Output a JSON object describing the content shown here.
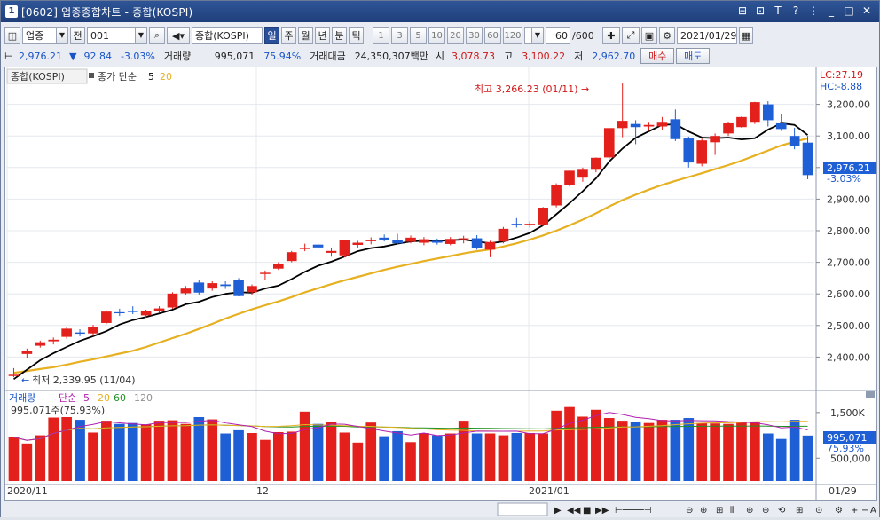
{
  "window": {
    "icon": "1",
    "title": "[0602] 업종종합차트 - 종합(KOSPI)",
    "controls": [
      "restore-icon",
      "link-icon",
      "text-icon",
      "help-icon",
      "more-icon",
      "minimize-icon",
      "maximize-icon",
      "close-icon"
    ]
  },
  "toolbar": {
    "market_select": "업종",
    "prev_label": "전",
    "code_value": "001",
    "index_name": "종합(KOSPI)",
    "periods": [
      "일",
      "주",
      "월",
      "년",
      "분",
      "틱"
    ],
    "active_period": "일",
    "numbers": [
      "1",
      "3",
      "5",
      "10",
      "20",
      "30",
      "60",
      "120"
    ],
    "count_value": "60",
    "count_total": "/600",
    "date_value": "2021/01/29"
  },
  "infobar": {
    "price": "2,976.21",
    "change_arrow": "▼",
    "change": "92.84",
    "change_pct": "-3.03%",
    "volume_label": "거래량",
    "volume": "995,071",
    "volume_pct": "75.94%",
    "amount_label": "거래대금",
    "amount": "24,350,307백만",
    "open_label": "시",
    "open": "3,078.73",
    "high_label": "고",
    "high": "3,100.22",
    "low_label": "저",
    "low": "2,962.70",
    "buy_label": "매수",
    "sell_label": "매도"
  },
  "chart": {
    "legend_name": "종합(KOSPI)",
    "legend_ma_label": "종가 단순",
    "legend_ma5": "5",
    "legend_ma20": "20",
    "lc_label": "LC:27.19",
    "hc_label": "HC:-8.88",
    "high_annot": "최고 3,266.23 (01/11)",
    "low_annot": "최저 2,339.95 (11/04)",
    "last_price_box": "2,976.21",
    "last_change_pct": "-3.03%",
    "price_ticks": [
      "3,200.00",
      "3,100.00",
      "3,000.00",
      "2,900.00",
      "2,800.00",
      "2,700.00",
      "2,600.00",
      "2,500.00",
      "2,400.00"
    ],
    "volume_legend_label": "거래량",
    "volume_legend_ma": "단순",
    "volume_legend_periods": [
      "5",
      "20",
      "60",
      "120"
    ],
    "volume_sub": "995,071주(75.93%)",
    "volume_ticks": [
      "1,500K",
      "500,000"
    ],
    "volume_last_box": "995,071",
    "volume_last_pct": "75.93%",
    "date_labels": [
      "2020/11",
      "12",
      "2021/01"
    ],
    "last_date_label": "01/29"
  },
  "colors": {
    "up": "#e3201b",
    "down": "#1f5fd6",
    "ma5": "#000000",
    "ma20": "#e6b020",
    "vol_ma5": "#b020b0",
    "vol_ma20": "#e6b020",
    "vol_ma60": "#209020",
    "vol_ma120": "#909090"
  },
  "chart_data": {
    "type": "candlestick",
    "price_axis": {
      "min": 2300,
      "max": 3300,
      "ticks": [
        2400,
        2500,
        2600,
        2700,
        2800,
        2900,
        3000,
        3100,
        3200
      ]
    },
    "volume_axis_unit": "K",
    "candles": [
      {
        "o": 2340,
        "h": 2365,
        "l": 2336,
        "c": 2344
      },
      {
        "o": 2410,
        "h": 2427,
        "l": 2398,
        "c": 2420
      },
      {
        "o": 2436,
        "h": 2452,
        "l": 2430,
        "c": 2447
      },
      {
        "o": 2450,
        "h": 2462,
        "l": 2440,
        "c": 2455
      },
      {
        "o": 2464,
        "h": 2496,
        "l": 2458,
        "c": 2490
      },
      {
        "o": 2478,
        "h": 2488,
        "l": 2466,
        "c": 2474
      },
      {
        "o": 2475,
        "h": 2502,
        "l": 2466,
        "c": 2494
      },
      {
        "o": 2508,
        "h": 2548,
        "l": 2504,
        "c": 2544
      },
      {
        "o": 2542,
        "h": 2553,
        "l": 2530,
        "c": 2539
      },
      {
        "o": 2546,
        "h": 2561,
        "l": 2536,
        "c": 2543
      },
      {
        "o": 2532,
        "h": 2550,
        "l": 2525,
        "c": 2545
      },
      {
        "o": 2546,
        "h": 2561,
        "l": 2540,
        "c": 2554
      },
      {
        "o": 2557,
        "h": 2605,
        "l": 2553,
        "c": 2601
      },
      {
        "o": 2602,
        "h": 2625,
        "l": 2596,
        "c": 2617
      },
      {
        "o": 2636,
        "h": 2644,
        "l": 2598,
        "c": 2604
      },
      {
        "o": 2617,
        "h": 2640,
        "l": 2610,
        "c": 2634
      },
      {
        "o": 2630,
        "h": 2640,
        "l": 2616,
        "c": 2625
      },
      {
        "o": 2645,
        "h": 2650,
        "l": 2592,
        "c": 2593
      },
      {
        "o": 2605,
        "h": 2630,
        "l": 2596,
        "c": 2625
      },
      {
        "o": 2663,
        "h": 2674,
        "l": 2645,
        "c": 2667
      },
      {
        "o": 2680,
        "h": 2700,
        "l": 2676,
        "c": 2696
      },
      {
        "o": 2704,
        "h": 2736,
        "l": 2700,
        "c": 2732
      },
      {
        "o": 2742,
        "h": 2759,
        "l": 2735,
        "c": 2746
      },
      {
        "o": 2756,
        "h": 2760,
        "l": 2740,
        "c": 2747
      },
      {
        "o": 2730,
        "h": 2744,
        "l": 2718,
        "c": 2736
      },
      {
        "o": 2722,
        "h": 2772,
        "l": 2716,
        "c": 2770
      },
      {
        "o": 2755,
        "h": 2768,
        "l": 2744,
        "c": 2762
      },
      {
        "o": 2768,
        "h": 2779,
        "l": 2757,
        "c": 2770
      },
      {
        "o": 2778,
        "h": 2788,
        "l": 2766,
        "c": 2772
      },
      {
        "o": 2770,
        "h": 2790,
        "l": 2756,
        "c": 2760
      },
      {
        "o": 2765,
        "h": 2785,
        "l": 2760,
        "c": 2778
      },
      {
        "o": 2762,
        "h": 2780,
        "l": 2754,
        "c": 2773
      },
      {
        "o": 2768,
        "h": 2775,
        "l": 2756,
        "c": 2762
      },
      {
        "o": 2758,
        "h": 2780,
        "l": 2754,
        "c": 2774
      },
      {
        "o": 2773,
        "h": 2784,
        "l": 2760,
        "c": 2776
      },
      {
        "o": 2776,
        "h": 2786,
        "l": 2740,
        "c": 2744
      },
      {
        "o": 2740,
        "h": 2768,
        "l": 2716,
        "c": 2764
      },
      {
        "o": 2766,
        "h": 2812,
        "l": 2760,
        "c": 2806
      },
      {
        "o": 2822,
        "h": 2840,
        "l": 2810,
        "c": 2820
      },
      {
        "o": 2818,
        "h": 2830,
        "l": 2810,
        "c": 2822
      },
      {
        "o": 2820,
        "h": 2875,
        "l": 2814,
        "c": 2873
      },
      {
        "o": 2880,
        "h": 2950,
        "l": 2874,
        "c": 2944
      },
      {
        "o": 2945,
        "h": 2990,
        "l": 2940,
        "c": 2990
      },
      {
        "o": 2968,
        "h": 3000,
        "l": 2955,
        "c": 2993
      },
      {
        "o": 2993,
        "h": 3032,
        "l": 2985,
        "c": 3031
      },
      {
        "o": 3032,
        "h": 3124,
        "l": 3026,
        "c": 3125
      },
      {
        "o": 3125,
        "h": 3266,
        "l": 3096,
        "c": 3148
      },
      {
        "o": 3138,
        "h": 3150,
        "l": 3074,
        "c": 3128
      },
      {
        "o": 3130,
        "h": 3142,
        "l": 3116,
        "c": 3135
      },
      {
        "o": 3130,
        "h": 3160,
        "l": 3120,
        "c": 3142
      },
      {
        "o": 3153,
        "h": 3184,
        "l": 3084,
        "c": 3090
      },
      {
        "o": 3092,
        "h": 3098,
        "l": 3000,
        "c": 3016
      },
      {
        "o": 3012,
        "h": 3094,
        "l": 3004,
        "c": 3086
      },
      {
        "o": 3080,
        "h": 3108,
        "l": 3040,
        "c": 3100
      },
      {
        "o": 3108,
        "h": 3145,
        "l": 3100,
        "c": 3140
      },
      {
        "o": 3128,
        "h": 3162,
        "l": 3126,
        "c": 3160
      },
      {
        "o": 3142,
        "h": 3208,
        "l": 3138,
        "c": 3207
      },
      {
        "o": 3200,
        "h": 3210,
        "l": 3130,
        "c": 3150
      },
      {
        "o": 3140,
        "h": 3170,
        "l": 3116,
        "c": 3122
      },
      {
        "o": 3100,
        "h": 3126,
        "l": 3058,
        "c": 3069
      },
      {
        "o": 3079,
        "h": 3100,
        "l": 2963,
        "c": 2976
      }
    ],
    "ma5": [
      2330,
      2360,
      2390,
      2412,
      2432,
      2451,
      2466,
      2482,
      2503,
      2517,
      2527,
      2538,
      2550,
      2567,
      2575,
      2590,
      2600,
      2605,
      2604,
      2617,
      2626,
      2647,
      2670,
      2689,
      2702,
      2718,
      2735,
      2745,
      2750,
      2759,
      2766,
      2768,
      2767,
      2770,
      2772,
      2766,
      2760,
      2766,
      2778,
      2793,
      2817,
      2852,
      2887,
      2925,
      2966,
      3019,
      3060,
      3094,
      3115,
      3135,
      3137,
      3114,
      3095,
      3093,
      3095,
      3089,
      3093,
      3120,
      3140,
      3135,
      3103
    ],
    "ma20": [
      2350,
      2356,
      2362,
      2368,
      2376,
      2385,
      2393,
      2402,
      2411,
      2420,
      2432,
      2446,
      2460,
      2474,
      2489,
      2505,
      2522,
      2537,
      2551,
      2564,
      2576,
      2590,
      2605,
      2618,
      2631,
      2643,
      2654,
      2665,
      2676,
      2686,
      2695,
      2704,
      2712,
      2720,
      2728,
      2735,
      2741,
      2750,
      2760,
      2772,
      2785,
      2800,
      2817,
      2835,
      2855,
      2877,
      2897,
      2914,
      2930,
      2945,
      2958,
      2970,
      2982,
      2995,
      3008,
      3022,
      3038,
      3054,
      3070,
      3082,
      3092
    ],
    "volume": [
      960,
      820,
      1000,
      1390,
      1400,
      1340,
      1060,
      1320,
      1250,
      1270,
      1240,
      1320,
      1330,
      1250,
      1400,
      1350,
      1040,
      1110,
      1050,
      900,
      1070,
      1080,
      1520,
      1250,
      1300,
      1060,
      840,
      1280,
      980,
      1090,
      850,
      1050,
      1000,
      1040,
      1320,
      1040,
      1040,
      1000,
      1050,
      1050,
      1040,
      1540,
      1620,
      1410,
      1560,
      1380,
      1320,
      1300,
      1270,
      1340,
      1340,
      1380,
      1270,
      1260,
      1250,
      1300,
      1300,
      1040,
      920,
      1340,
      995
    ]
  }
}
